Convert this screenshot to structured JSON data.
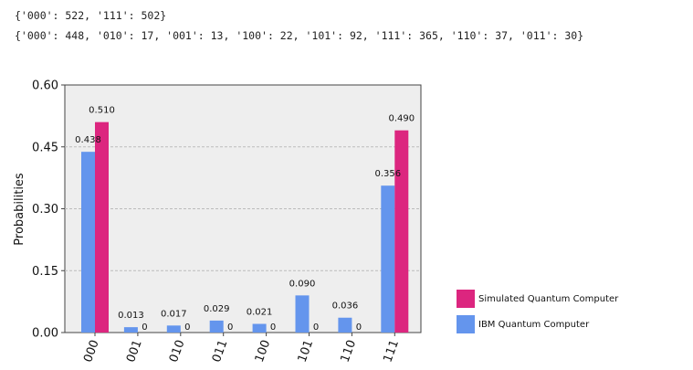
{
  "output": {
    "line1": "{'000': 522, '111': 502}",
    "line2": "{'000': 448, '010': 17, '001': 13, '100': 22, '101': 92, '111': 365, '110': 37, '011': 30}"
  },
  "chart_data": {
    "type": "bar",
    "ylabel": "Probabilities",
    "ylim": [
      0,
      0.6
    ],
    "yticks": [
      "0.00",
      "0.15",
      "0.30",
      "0.45",
      "0.60"
    ],
    "grid": "horizontal dashed",
    "categories": [
      "000",
      "001",
      "010",
      "011",
      "100",
      "101",
      "110",
      "111"
    ],
    "legend_position": "bottom-right",
    "series": [
      {
        "name": "IBM Quantum Computer",
        "color": "#6495ed",
        "values": [
          0.438,
          0.013,
          0.017,
          0.029,
          0.021,
          0.09,
          0.036,
          0.356
        ],
        "labels": [
          "0.438",
          "0.013",
          "0.017",
          "0.029",
          "0.021",
          "0.090",
          "0.036",
          "0.356"
        ]
      },
      {
        "name": "Simulated Quantum Computer",
        "color": "#dc267f",
        "values": [
          0.51,
          0,
          0,
          0,
          0,
          0,
          0,
          0.49
        ],
        "labels": [
          "0.510",
          "0",
          "0",
          "0",
          "0",
          "0",
          "0",
          "0.490"
        ]
      }
    ]
  }
}
